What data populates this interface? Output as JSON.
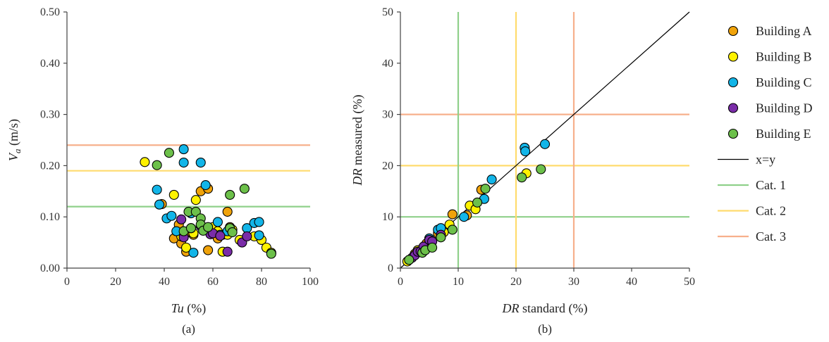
{
  "colors": {
    "Building A": "#F0A30A",
    "Building B": "#FFF200",
    "Building C": "#12B5E8",
    "Building D": "#7A2CA8",
    "Building E": "#6CC04A",
    "xy": "#000000",
    "cat1": "#8FD08A",
    "cat2": "#FFDB6E",
    "cat3": "#F7B08C"
  },
  "legend": {
    "buildings": [
      "Building A",
      "Building B",
      "Building C",
      "Building D",
      "Building E"
    ],
    "xy_label": "x=y",
    "cat_labels": [
      "Cat. 1",
      "Cat. 2",
      "Cat. 3"
    ]
  },
  "chart_data": [
    {
      "type": "scatter",
      "caption": "(a)",
      "xlabel_italic": "Tu",
      "xlabel_rest": " (%)",
      "ylabel_italic": "V",
      "ylabel_sub": "a",
      "ylabel_rest": " (m/s)",
      "xlim": [
        0,
        100
      ],
      "ylim": [
        0,
        0.5
      ],
      "xticks": [
        "0",
        "20",
        "40",
        "60",
        "80",
        "100"
      ],
      "yticks": [
        "0.00",
        "0.10",
        "0.20",
        "0.30",
        "0.40",
        "0.50"
      ],
      "hlines": [
        {
          "label": "Cat. 1",
          "y": 0.12
        },
        {
          "label": "Cat. 2",
          "y": 0.19
        },
        {
          "label": "Cat. 3",
          "y": 0.24
        }
      ],
      "series": [
        {
          "name": "Building A",
          "points": [
            [
              39,
              0.125
            ],
            [
              44,
              0.058
            ],
            [
              46,
              0.085
            ],
            [
              47,
              0.048
            ],
            [
              49,
              0.032
            ],
            [
              50,
              0.07
            ],
            [
              52,
              0.065
            ],
            [
              55,
              0.15
            ],
            [
              58,
              0.035
            ],
            [
              58,
              0.155
            ],
            [
              61,
              0.075
            ],
            [
              62,
              0.058
            ],
            [
              64,
              0.065
            ],
            [
              66,
              0.11
            ],
            [
              67,
              0.08
            ]
          ]
        },
        {
          "name": "Building B",
          "points": [
            [
              32,
              0.207
            ],
            [
              44,
              0.143
            ],
            [
              47,
              0.062
            ],
            [
              49,
              0.04
            ],
            [
              52,
              0.068
            ],
            [
              53,
              0.133
            ],
            [
              56,
              0.078
            ],
            [
              60,
              0.08
            ],
            [
              62,
              0.072
            ],
            [
              64,
              0.032
            ],
            [
              66,
              0.065
            ],
            [
              68,
              0.075
            ],
            [
              71,
              0.055
            ],
            [
              77,
              0.062
            ],
            [
              80,
              0.055
            ],
            [
              82,
              0.04
            ],
            [
              84,
              0.03
            ]
          ]
        },
        {
          "name": "Building C",
          "points": [
            [
              37,
              0.153
            ],
            [
              38,
              0.124
            ],
            [
              41,
              0.097
            ],
            [
              43,
              0.102
            ],
            [
              45,
              0.072
            ],
            [
              48,
              0.232
            ],
            [
              48,
              0.206
            ],
            [
              51,
              0.107
            ],
            [
              52,
              0.03
            ],
            [
              55,
              0.206
            ],
            [
              57,
              0.162
            ],
            [
              58,
              0.08
            ],
            [
              62,
              0.09
            ],
            [
              63,
              0.065
            ],
            [
              66,
              0.072
            ],
            [
              74,
              0.078
            ],
            [
              77,
              0.088
            ],
            [
              79,
              0.09
            ],
            [
              79,
              0.064
            ]
          ]
        },
        {
          "name": "Building D",
          "points": [
            [
              47,
              0.095
            ],
            [
              48,
              0.06
            ],
            [
              51,
              0.078
            ],
            [
              55,
              0.082
            ],
            [
              59,
              0.066
            ],
            [
              60,
              0.068
            ],
            [
              63,
              0.063
            ],
            [
              66,
              0.032
            ],
            [
              72,
              0.05
            ],
            [
              74,
              0.062
            ]
          ]
        },
        {
          "name": "Building E",
          "points": [
            [
              37,
              0.201
            ],
            [
              42,
              0.225
            ],
            [
              48,
              0.072
            ],
            [
              50,
              0.11
            ],
            [
              51,
              0.078
            ],
            [
              53,
              0.11
            ],
            [
              55,
              0.097
            ],
            [
              55,
              0.085
            ],
            [
              56,
              0.073
            ],
            [
              58,
              0.08
            ],
            [
              67,
              0.143
            ],
            [
              67,
              0.078
            ],
            [
              68,
              0.07
            ],
            [
              73,
              0.155
            ],
            [
              84,
              0.028
            ]
          ]
        }
      ]
    },
    {
      "type": "scatter",
      "caption": "(b)",
      "xlabel_italic": "DR",
      "xlabel_rest": " standard (%)",
      "ylabel_italic": "DR",
      "ylabel_rest": " measured (%)",
      "xlim": [
        0,
        50
      ],
      "ylim": [
        0,
        50
      ],
      "xticks": [
        "0",
        "10",
        "20",
        "30",
        "40",
        "50"
      ],
      "yticks": [
        "0",
        "10",
        "20",
        "30",
        "40",
        "50"
      ],
      "hlines": [
        {
          "label": "Cat. 1",
          "y": 10
        },
        {
          "label": "Cat. 2",
          "y": 20
        },
        {
          "label": "Cat. 3",
          "y": 30
        }
      ],
      "vlines": [
        {
          "label": "Cat. 1",
          "x": 10
        },
        {
          "label": "Cat. 2",
          "x": 20
        },
        {
          "label": "Cat. 3",
          "x": 30
        }
      ],
      "diagonal": {
        "label": "x=y",
        "from": [
          0,
          0
        ],
        "to": [
          50,
          50
        ]
      },
      "series": [
        {
          "name": "Building A",
          "points": [
            [
              2.5,
              2.8
            ],
            [
              4.5,
              4.8
            ],
            [
              6.5,
              6.8
            ],
            [
              8.5,
              8.2
            ],
            [
              9.0,
              10.5
            ],
            [
              11.5,
              10.3
            ],
            [
              14.0,
              15.3
            ]
          ]
        },
        {
          "name": "Building B",
          "points": [
            [
              1.2,
              1.3
            ],
            [
              3.0,
              3.5
            ],
            [
              5.0,
              5.0
            ],
            [
              7.5,
              7.0
            ],
            [
              8.5,
              8.5
            ],
            [
              12.0,
              12.2
            ],
            [
              13.0,
              11.5
            ],
            [
              21.8,
              18.5
            ]
          ]
        },
        {
          "name": "Building C",
          "points": [
            [
              5.0,
              5.8
            ],
            [
              6.5,
              7.5
            ],
            [
              7.0,
              7.8
            ],
            [
              11.0,
              10.0
            ],
            [
              14.5,
              13.5
            ],
            [
              15.8,
              17.3
            ],
            [
              21.5,
              23.5
            ],
            [
              21.6,
              22.8
            ],
            [
              25.0,
              24.2
            ]
          ]
        },
        {
          "name": "Building D",
          "points": [
            [
              2.0,
              2.0
            ],
            [
              2.5,
              2.5
            ],
            [
              3.0,
              3.2
            ],
            [
              3.5,
              3.3
            ],
            [
              4.0,
              4.2
            ],
            [
              5.0,
              5.5
            ],
            [
              5.5,
              5.2
            ],
            [
              7.0,
              6.5
            ]
          ]
        },
        {
          "name": "Building E",
          "points": [
            [
              1.5,
              1.6
            ],
            [
              3.8,
              3.0
            ],
            [
              4.3,
              3.5
            ],
            [
              5.5,
              4.0
            ],
            [
              7.0,
              6.0
            ],
            [
              9.0,
              7.5
            ],
            [
              13.3,
              12.8
            ],
            [
              14.7,
              15.5
            ],
            [
              21.0,
              17.7
            ],
            [
              24.3,
              19.3
            ]
          ]
        }
      ]
    }
  ]
}
